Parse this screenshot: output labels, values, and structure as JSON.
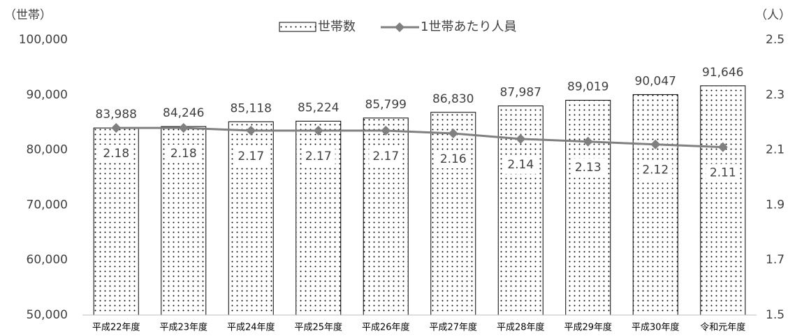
{
  "chart_data": {
    "type": "bar",
    "ylabel": "（世帯）",
    "y2label": "（人）",
    "categories": [
      "平成22年度",
      "平成23年度",
      "平成24年度",
      "平成25年度",
      "平成26年度",
      "平成27年度",
      "平成28年度",
      "平成29年度",
      "平成30年度",
      "令和元年度"
    ],
    "series": [
      {
        "name": "世帯数",
        "type": "bar",
        "color": "#000000",
        "values": [
          83988,
          84246,
          85118,
          85224,
          85799,
          86830,
          87987,
          89019,
          90047,
          91646
        ],
        "value_labels": [
          "83,988",
          "84,246",
          "85,118",
          "85,224",
          "85,799",
          "86,830",
          "87,987",
          "89,019",
          "90,047",
          "91,646"
        ]
      },
      {
        "name": "1世帯あたり人員",
        "type": "line",
        "axis": "y2",
        "color": "#808080",
        "values": [
          2.18,
          2.18,
          2.17,
          2.17,
          2.17,
          2.16,
          2.14,
          2.13,
          2.12,
          2.11
        ]
      }
    ],
    "ylim": [
      50000,
      100000
    ],
    "yticks": [
      {
        "value": 50000,
        "label": "50,000"
      },
      {
        "value": 60000,
        "label": "60,000"
      },
      {
        "value": 70000,
        "label": "70,000"
      },
      {
        "value": 80000,
        "label": "80,000"
      },
      {
        "value": 90000,
        "label": "90,000"
      },
      {
        "value": 100000,
        "label": "100,000"
      }
    ],
    "y2lim": [
      1.5,
      2.5
    ],
    "y2ticks": [
      1.5,
      1.7,
      1.9,
      2.1,
      2.3,
      2.5
    ],
    "grid": false,
    "legend": "top"
  }
}
